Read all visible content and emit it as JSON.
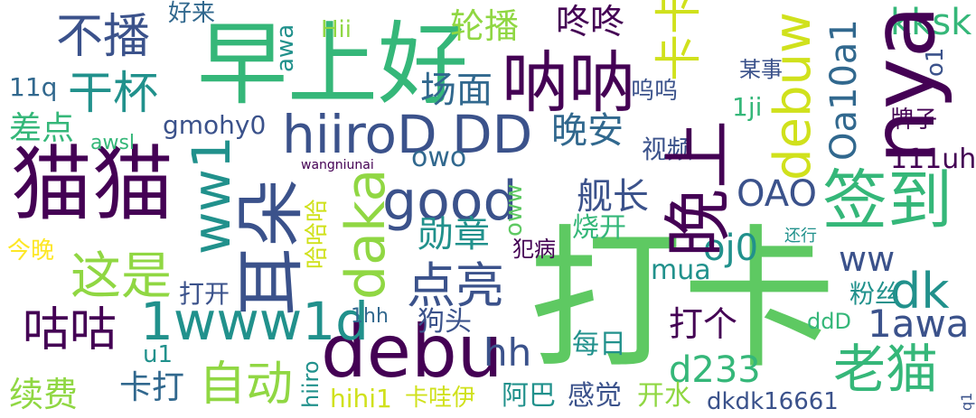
{
  "palette": {
    "purple": "#440154",
    "indigo": "#3b528b",
    "blue": "#31688e",
    "teal": "#21918c",
    "green": "#35b779",
    "lime": "#5ec962",
    "yellowgreen": "#90d743",
    "yellow": "#d0e11c",
    "brightyellow": "#fde725"
  },
  "words": [
    {
      "text": "打卡",
      "color": "lime"
    },
    {
      "text": "早上好",
      "color": "green"
    },
    {
      "text": "猫猫",
      "color": "purple"
    },
    {
      "text": "debu",
      "color": "purple"
    },
    {
      "text": "呐呐",
      "color": "purple"
    },
    {
      "text": "nya",
      "color": "purple"
    },
    {
      "text": "签到",
      "color": "green"
    },
    {
      "text": "耳朵",
      "color": "indigo"
    },
    {
      "text": "晚上",
      "color": "purple"
    },
    {
      "text": "hiiroD",
      "color": "indigo"
    },
    {
      "text": "DD",
      "color": "indigo"
    },
    {
      "text": "good",
      "color": "indigo"
    },
    {
      "text": "1www1d",
      "color": "teal"
    },
    {
      "text": "daka",
      "color": "yellowgreen"
    },
    {
      "text": "debuw",
      "color": "yellow"
    },
    {
      "text": "不播",
      "color": "indigo"
    },
    {
      "text": "干杯",
      "color": "teal"
    },
    {
      "text": "这是",
      "color": "yellowgreen"
    },
    {
      "text": "点亮",
      "color": "indigo"
    },
    {
      "text": "老猫",
      "color": "green"
    },
    {
      "text": "咕咕",
      "color": "purple"
    },
    {
      "text": "ww1",
      "color": "teal"
    },
    {
      "text": "dk",
      "color": "teal"
    },
    {
      "text": "自动",
      "color": "yellowgreen"
    },
    {
      "text": "卡卡",
      "color": "yellow"
    },
    {
      "text": "Oa10a1",
      "color": "blue"
    },
    {
      "text": "轮播",
      "color": "yellowgreen"
    },
    {
      "text": "咚咚",
      "color": "purple"
    },
    {
      "text": "场面",
      "color": "blue"
    },
    {
      "text": "晚安",
      "color": "blue"
    },
    {
      "text": "舰长",
      "color": "indigo"
    },
    {
      "text": "勋章",
      "color": "teal"
    },
    {
      "text": "OAO",
      "color": "indigo"
    },
    {
      "text": "kksk",
      "color": "green"
    },
    {
      "text": "oj0",
      "color": "teal"
    },
    {
      "text": "hh",
      "color": "indigo"
    },
    {
      "text": "d233",
      "color": "green"
    },
    {
      "text": "1awa",
      "color": "indigo"
    },
    {
      "text": "续费",
      "color": "yellowgreen"
    },
    {
      "text": "卡打",
      "color": "blue"
    },
    {
      "text": "打个",
      "color": "purple"
    },
    {
      "text": "ww",
      "color": "indigo"
    },
    {
      "text": "owo",
      "color": "blue"
    },
    {
      "text": "差点",
      "color": "green"
    },
    {
      "text": "gmohy0",
      "color": "indigo"
    },
    {
      "text": "111uh",
      "color": "purple"
    },
    {
      "text": "oww",
      "color": "lime"
    },
    {
      "text": "某事",
      "color": "indigo"
    },
    {
      "text": "牌子",
      "color": "purple"
    },
    {
      "text": "视频",
      "color": "indigo"
    },
    {
      "text": "好来",
      "color": "blue"
    },
    {
      "text": "awa",
      "color": "teal"
    },
    {
      "text": "Hii",
      "color": "yellowgreen"
    },
    {
      "text": "11q",
      "color": "blue"
    },
    {
      "text": "awsl",
      "color": "green"
    },
    {
      "text": "1ji",
      "color": "green"
    },
    {
      "text": "o1",
      "color": "indigo"
    },
    {
      "text": "呜呜",
      "color": "indigo"
    },
    {
      "text": "wangniunai",
      "color": "purple"
    },
    {
      "text": "哈哈哈",
      "color": "yellow"
    },
    {
      "text": "今晚",
      "color": "brightyellow"
    },
    {
      "text": "烧开",
      "color": "green"
    },
    {
      "text": "犯病",
      "color": "purple"
    },
    {
      "text": "还行",
      "color": "teal"
    },
    {
      "text": "打开",
      "color": "indigo"
    },
    {
      "text": "mua",
      "color": "teal"
    },
    {
      "text": "粉丝",
      "color": "teal"
    },
    {
      "text": "1hh",
      "color": "blue"
    },
    {
      "text": "狗头",
      "color": "indigo"
    },
    {
      "text": "u1",
      "color": "teal"
    },
    {
      "text": "ddD",
      "color": "green"
    },
    {
      "text": "每日",
      "color": "teal"
    },
    {
      "text": "hiiro",
      "color": "teal"
    },
    {
      "text": "hihi1",
      "color": "yellow"
    },
    {
      "text": "卡哇伊",
      "color": "yellow"
    },
    {
      "text": "阿巴",
      "color": "teal"
    },
    {
      "text": "感觉",
      "color": "indigo"
    },
    {
      "text": "开水",
      "color": "yellowgreen"
    },
    {
      "text": "dkdk16661",
      "color": "indigo"
    },
    {
      "text": "q1",
      "color": "indigo"
    }
  ]
}
